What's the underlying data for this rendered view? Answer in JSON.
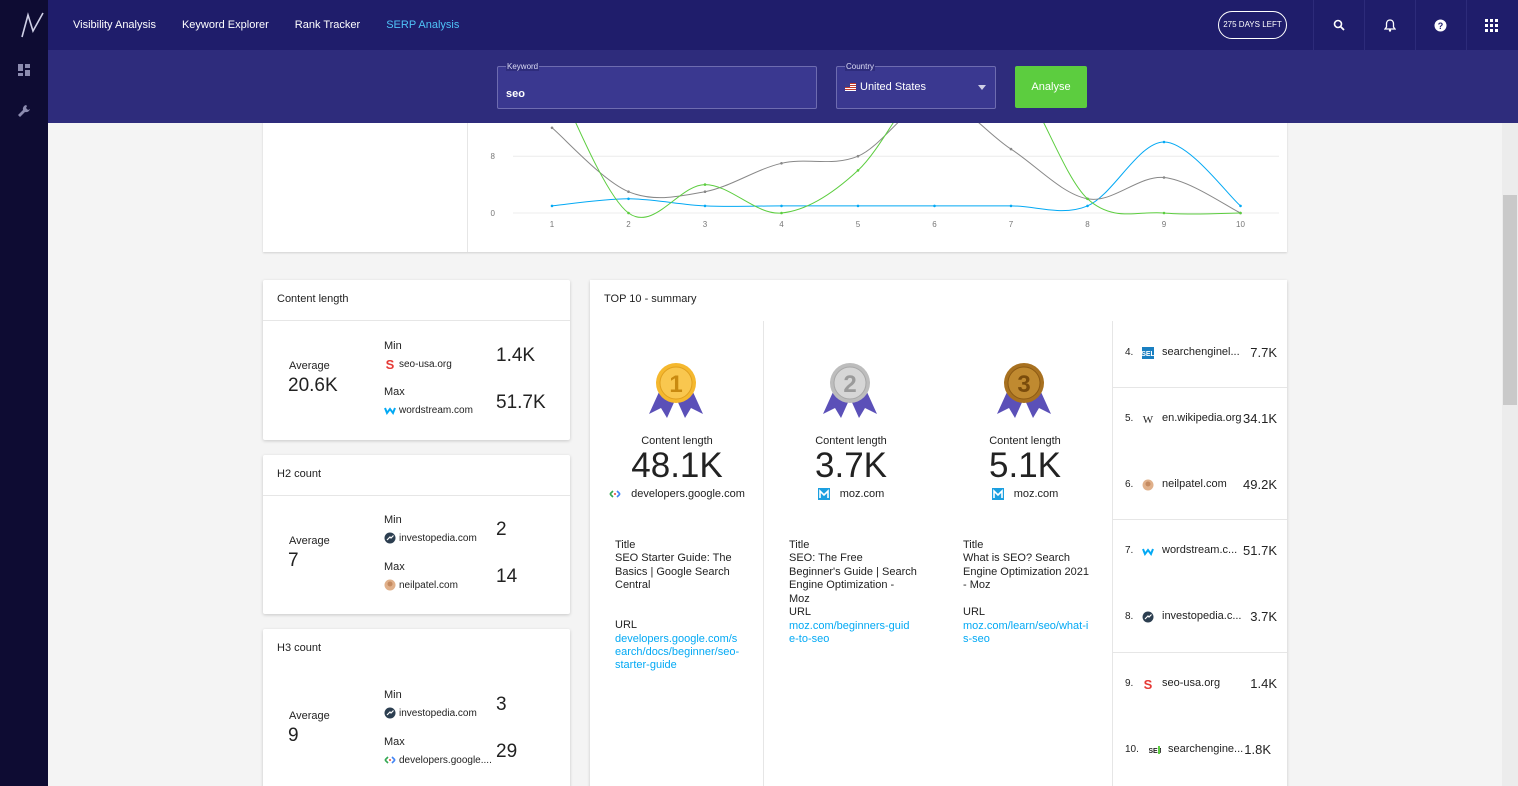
{
  "nav": {
    "items": [
      "Visibility Analysis",
      "Keyword Explorer",
      "Rank Tracker",
      "SERP Analysis"
    ],
    "active": "SERP Analysis",
    "days_left": "275 DAYS LEFT"
  },
  "search": {
    "keyword_label": "Keyword",
    "keyword_value": "seo",
    "country_label": "Country",
    "country_value": "United States",
    "analyse_label": "Analyse"
  },
  "chart_data": {
    "type": "line",
    "x": [
      1,
      2,
      3,
      4,
      5,
      6,
      7,
      8,
      9,
      10
    ],
    "ytick_labels": [
      "8",
      "0"
    ],
    "series": [
      {
        "color": "#03a9f4",
        "values": [
          1,
          2,
          1,
          1,
          1,
          1,
          1,
          1,
          10,
          1
        ]
      },
      {
        "color": "#888888",
        "values": [
          12,
          3,
          3,
          7,
          8,
          16,
          9,
          2,
          5,
          0
        ]
      },
      {
        "color": "#5ccd3f",
        "values": [
          20,
          0,
          4,
          0,
          6,
          20,
          20,
          2,
          0,
          0
        ]
      }
    ]
  },
  "content_length": {
    "title": "Content length",
    "avg_label": "Average",
    "avg_value": "20.6K",
    "min_label": "Min",
    "min_site": "seo-usa.org",
    "min_value": "1.4K",
    "max_label": "Max",
    "max_site": "wordstream.com",
    "max_value": "51.7K"
  },
  "h2": {
    "title": "H2 count",
    "avg_label": "Average",
    "avg_value": "7",
    "min_label": "Min",
    "min_site": "investopedia.com",
    "min_value": "2",
    "max_label": "Max",
    "max_site": "neilpatel.com",
    "max_value": "14"
  },
  "h3": {
    "title": "H3 count",
    "avg_label": "Average",
    "avg_value": "9",
    "min_label": "Min",
    "min_site": "investopedia.com",
    "min_value": "3",
    "max_label": "Max",
    "max_site": "developers.google....",
    "max_value": "29"
  },
  "summary": {
    "title": "TOP 10 - summary",
    "podium": [
      {
        "rank": "1",
        "cl_label": "Content length",
        "cl_value": "48.1K",
        "site": "developers.google.com",
        "title_label": "Title",
        "title": "SEO Starter Guide: The Basics | Google Search Central",
        "url_label": "URL",
        "url": "developers.google.com/search/docs/beginner/seo-starter-guide"
      },
      {
        "rank": "2",
        "cl_label": "Content length",
        "cl_value": "3.7K",
        "site": "moz.com",
        "title_label": "Title",
        "title": "SEO: The Free Beginner's Guide | Search Engine Optimization - Moz",
        "url_label": "URL",
        "url": "moz.com/beginners-guide-to-seo"
      },
      {
        "rank": "3",
        "cl_label": "Content length",
        "cl_value": "5.1K",
        "site": "moz.com",
        "title_label": "Title",
        "title": "What is SEO? Search Engine Optimization 2021 - Moz",
        "url_label": "URL",
        "url": "moz.com/learn/seo/what-is-seo"
      }
    ],
    "ranks": [
      {
        "num": "4.",
        "site": "searchenginel...",
        "value": "7.7K"
      },
      {
        "num": "5.",
        "site": "en.wikipedia.org",
        "value": "34.1K"
      },
      {
        "num": "6.",
        "site": "neilpatel.com",
        "value": "49.2K"
      },
      {
        "num": "7.",
        "site": "wordstream.c...",
        "value": "51.7K"
      },
      {
        "num": "8.",
        "site": "investopedia.c...",
        "value": "3.7K"
      },
      {
        "num": "9.",
        "site": "seo-usa.org",
        "value": "1.4K"
      },
      {
        "num": "10.",
        "site": "searchengine...",
        "value": "1.8K"
      }
    ]
  },
  "colors": {
    "accent": "#03a9f4",
    "green": "#5ccd3f",
    "nav": "#1f1d6b",
    "sidebar": "#0e0c33",
    "searchbar": "#2e2c7c"
  },
  "icons": [
    "dashboard-icon",
    "wrench-icon",
    "search-icon",
    "bell-icon",
    "help-icon",
    "apps-grid-icon",
    "us-flag-icon",
    "dropdown-caret-icon"
  ]
}
